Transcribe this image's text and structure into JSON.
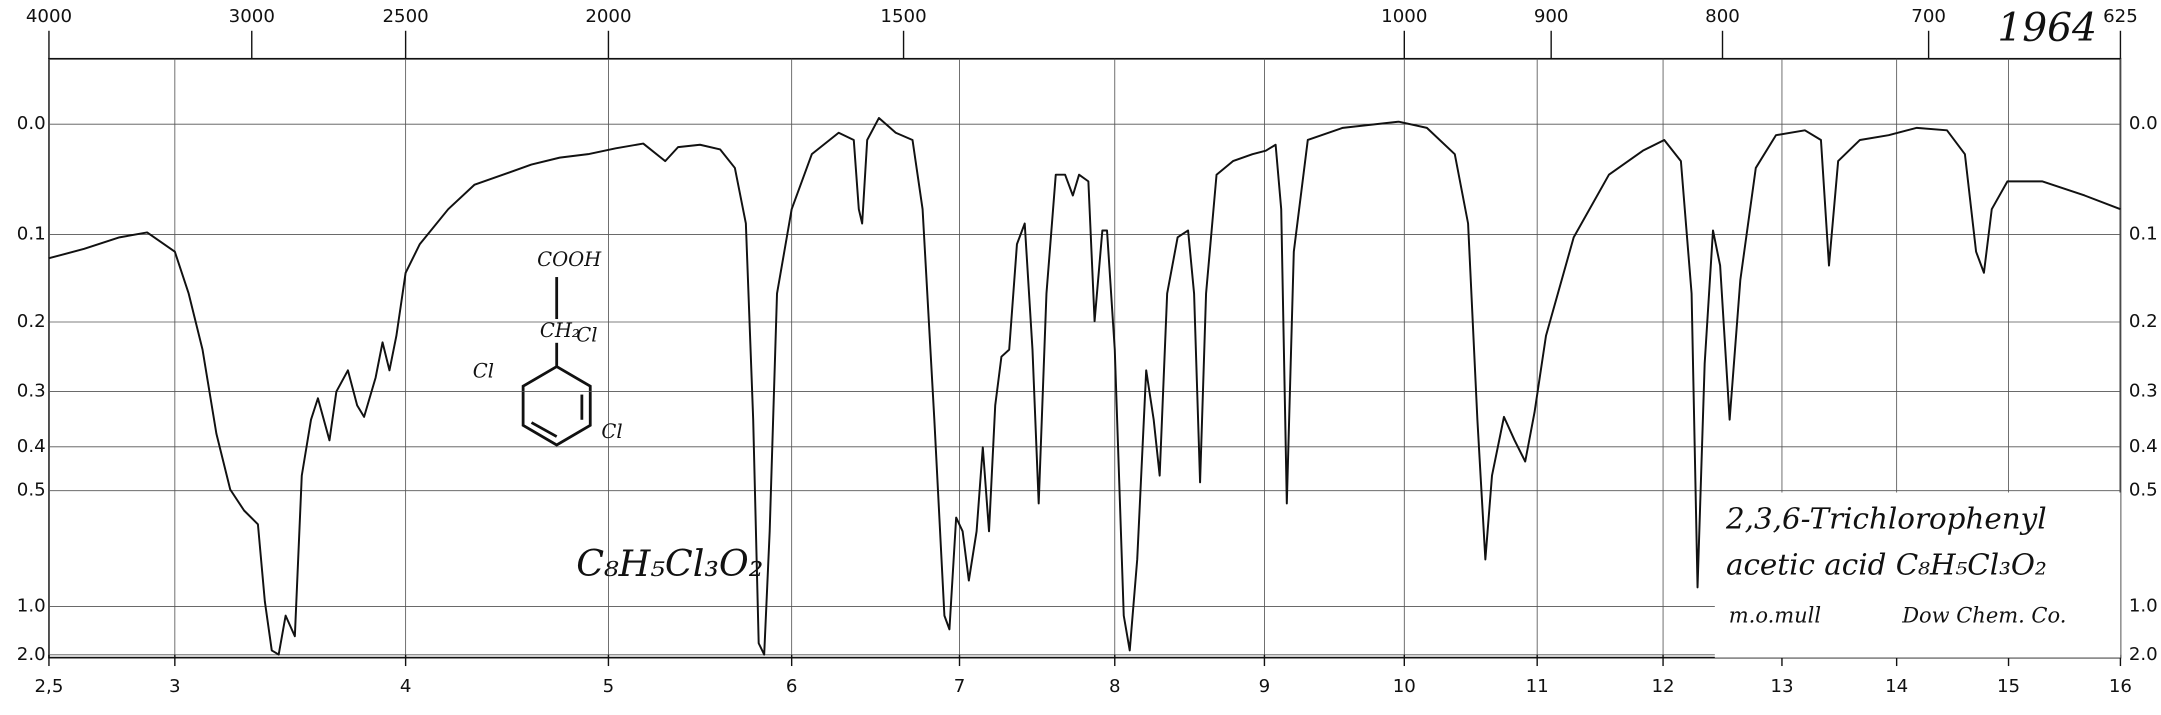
{
  "chart_data": {
    "type": "line",
    "color": "#111111",
    "yscale": "absorbance",
    "grid": true,
    "xlim": [
      2.5,
      16
    ],
    "ylim": [
      -0.05,
      2.0
    ],
    "xticks": [
      {
        "value": 2.5,
        "label": "2,5"
      },
      3,
      4,
      5,
      6,
      7,
      8,
      9,
      10,
      11,
      12,
      13,
      14,
      15,
      16
    ],
    "x2ticks": [
      4000,
      3000,
      2500,
      2000,
      1500,
      1000,
      900,
      800,
      700,
      625
    ],
    "yticks": [
      {
        "value": 0,
        "label": "0.0"
      },
      0.1,
      0.2,
      0.3,
      0.4,
      0.5,
      {
        "value": 1,
        "label": "1.0"
      },
      {
        "value": 2,
        "label": "2.0"
      }
    ],
    "annotations": [
      "1964",
      "C₈H₅Cl₃O₂",
      "2,3,6-Trichlorophenyl",
      "acetic acid C₈H₅Cl₃O₂",
      "m.o.mull",
      "Dow Chem. Co.",
      "COOH",
      "CH₂",
      "Cl",
      "Cl",
      "Cl"
    ],
    "x": [
      2.5,
      2.64,
      2.78,
      2.89,
      3.0,
      3.06,
      3.12,
      3.18,
      3.24,
      3.3,
      3.36,
      3.39,
      3.42,
      3.45,
      3.48,
      3.52,
      3.55,
      3.59,
      3.62,
      3.67,
      3.7,
      3.75,
      3.79,
      3.82,
      3.87,
      3.9,
      3.93,
      3.96,
      4.0,
      4.07,
      4.21,
      4.34,
      4.48,
      4.62,
      4.76,
      4.9,
      5.04,
      5.19,
      5.31,
      5.38,
      5.5,
      5.61,
      5.69,
      5.75,
      5.79,
      5.82,
      5.85,
      5.88,
      5.92,
      6.0,
      6.12,
      6.28,
      6.37,
      6.4,
      6.42,
      6.45,
      6.52,
      6.62,
      6.72,
      6.78,
      6.85,
      6.91,
      6.94,
      6.98,
      7.02,
      7.06,
      7.11,
      7.15,
      7.19,
      7.23,
      7.27,
      7.32,
      7.37,
      7.42,
      7.47,
      7.51,
      7.56,
      7.62,
      7.68,
      7.73,
      7.77,
      7.83,
      7.87,
      7.92,
      7.95,
      8.0,
      8.06,
      8.1,
      8.15,
      8.21,
      8.26,
      8.3,
      8.35,
      8.42,
      8.49,
      8.53,
      8.57,
      8.61,
      8.68,
      8.79,
      8.92,
      9.01,
      9.08,
      9.12,
      9.16,
      9.21,
      9.31,
      9.56,
      9.96,
      10.17,
      10.38,
      10.48,
      10.55,
      10.61,
      10.66,
      10.75,
      10.83,
      10.91,
      10.98,
      11.07,
      11.29,
      11.57,
      11.84,
      12.01,
      12.15,
      12.24,
      12.29,
      12.35,
      12.42,
      12.48,
      12.56,
      12.65,
      12.78,
      12.95,
      13.2,
      13.34,
      13.41,
      13.49,
      13.68,
      13.93,
      14.18,
      14.45,
      14.61,
      14.71,
      14.78,
      14.85,
      14.99,
      15.3,
      15.68,
      16.0
    ],
    "values": [
      0.125,
      0.115,
      0.103,
      0.098,
      0.118,
      0.165,
      0.237,
      0.374,
      0.497,
      0.554,
      0.596,
      0.96,
      1.74,
      1.98,
      1.08,
      1.35,
      0.463,
      0.348,
      0.311,
      0.387,
      0.3,
      0.267,
      0.323,
      0.343,
      0.278,
      0.227,
      0.267,
      0.218,
      0.141,
      0.11,
      0.075,
      0.052,
      0.043,
      0.034,
      0.028,
      0.025,
      0.02,
      0.016,
      0.031,
      0.019,
      0.017,
      0.021,
      0.037,
      0.089,
      0.348,
      1.5,
      1.98,
      0.619,
      0.165,
      0.075,
      0.025,
      0.007,
      0.013,
      0.075,
      0.089,
      0.013,
      -0.005,
      0.007,
      0.013,
      0.075,
      0.348,
      1.08,
      1.24,
      0.575,
      0.619,
      0.828,
      0.619,
      0.401,
      0.619,
      0.323,
      0.247,
      0.237,
      0.11,
      0.089,
      0.237,
      0.534,
      0.165,
      0.043,
      0.043,
      0.062,
      0.043,
      0.049,
      0.199,
      0.096,
      0.096,
      0.237,
      1.08,
      1.74,
      0.726,
      0.267,
      0.348,
      0.463,
      0.165,
      0.103,
      0.096,
      0.165,
      0.479,
      0.165,
      0.043,
      0.031,
      0.025,
      0.022,
      0.017,
      0.075,
      0.534,
      0.118,
      0.013,
      0.003,
      -0.002,
      0.003,
      0.025,
      0.089,
      0.348,
      0.726,
      0.463,
      0.343,
      0.387,
      0.431,
      0.335,
      0.218,
      0.103,
      0.043,
      0.022,
      0.013,
      0.031,
      0.165,
      0.867,
      0.257,
      0.096,
      0.133,
      0.348,
      0.149,
      0.037,
      0.009,
      0.005,
      0.013,
      0.133,
      0.031,
      0.013,
      0.009,
      0.003,
      0.005,
      0.025,
      0.118,
      0.141,
      0.075,
      0.049,
      0.049,
      0.062,
      0.075
    ]
  }
}
